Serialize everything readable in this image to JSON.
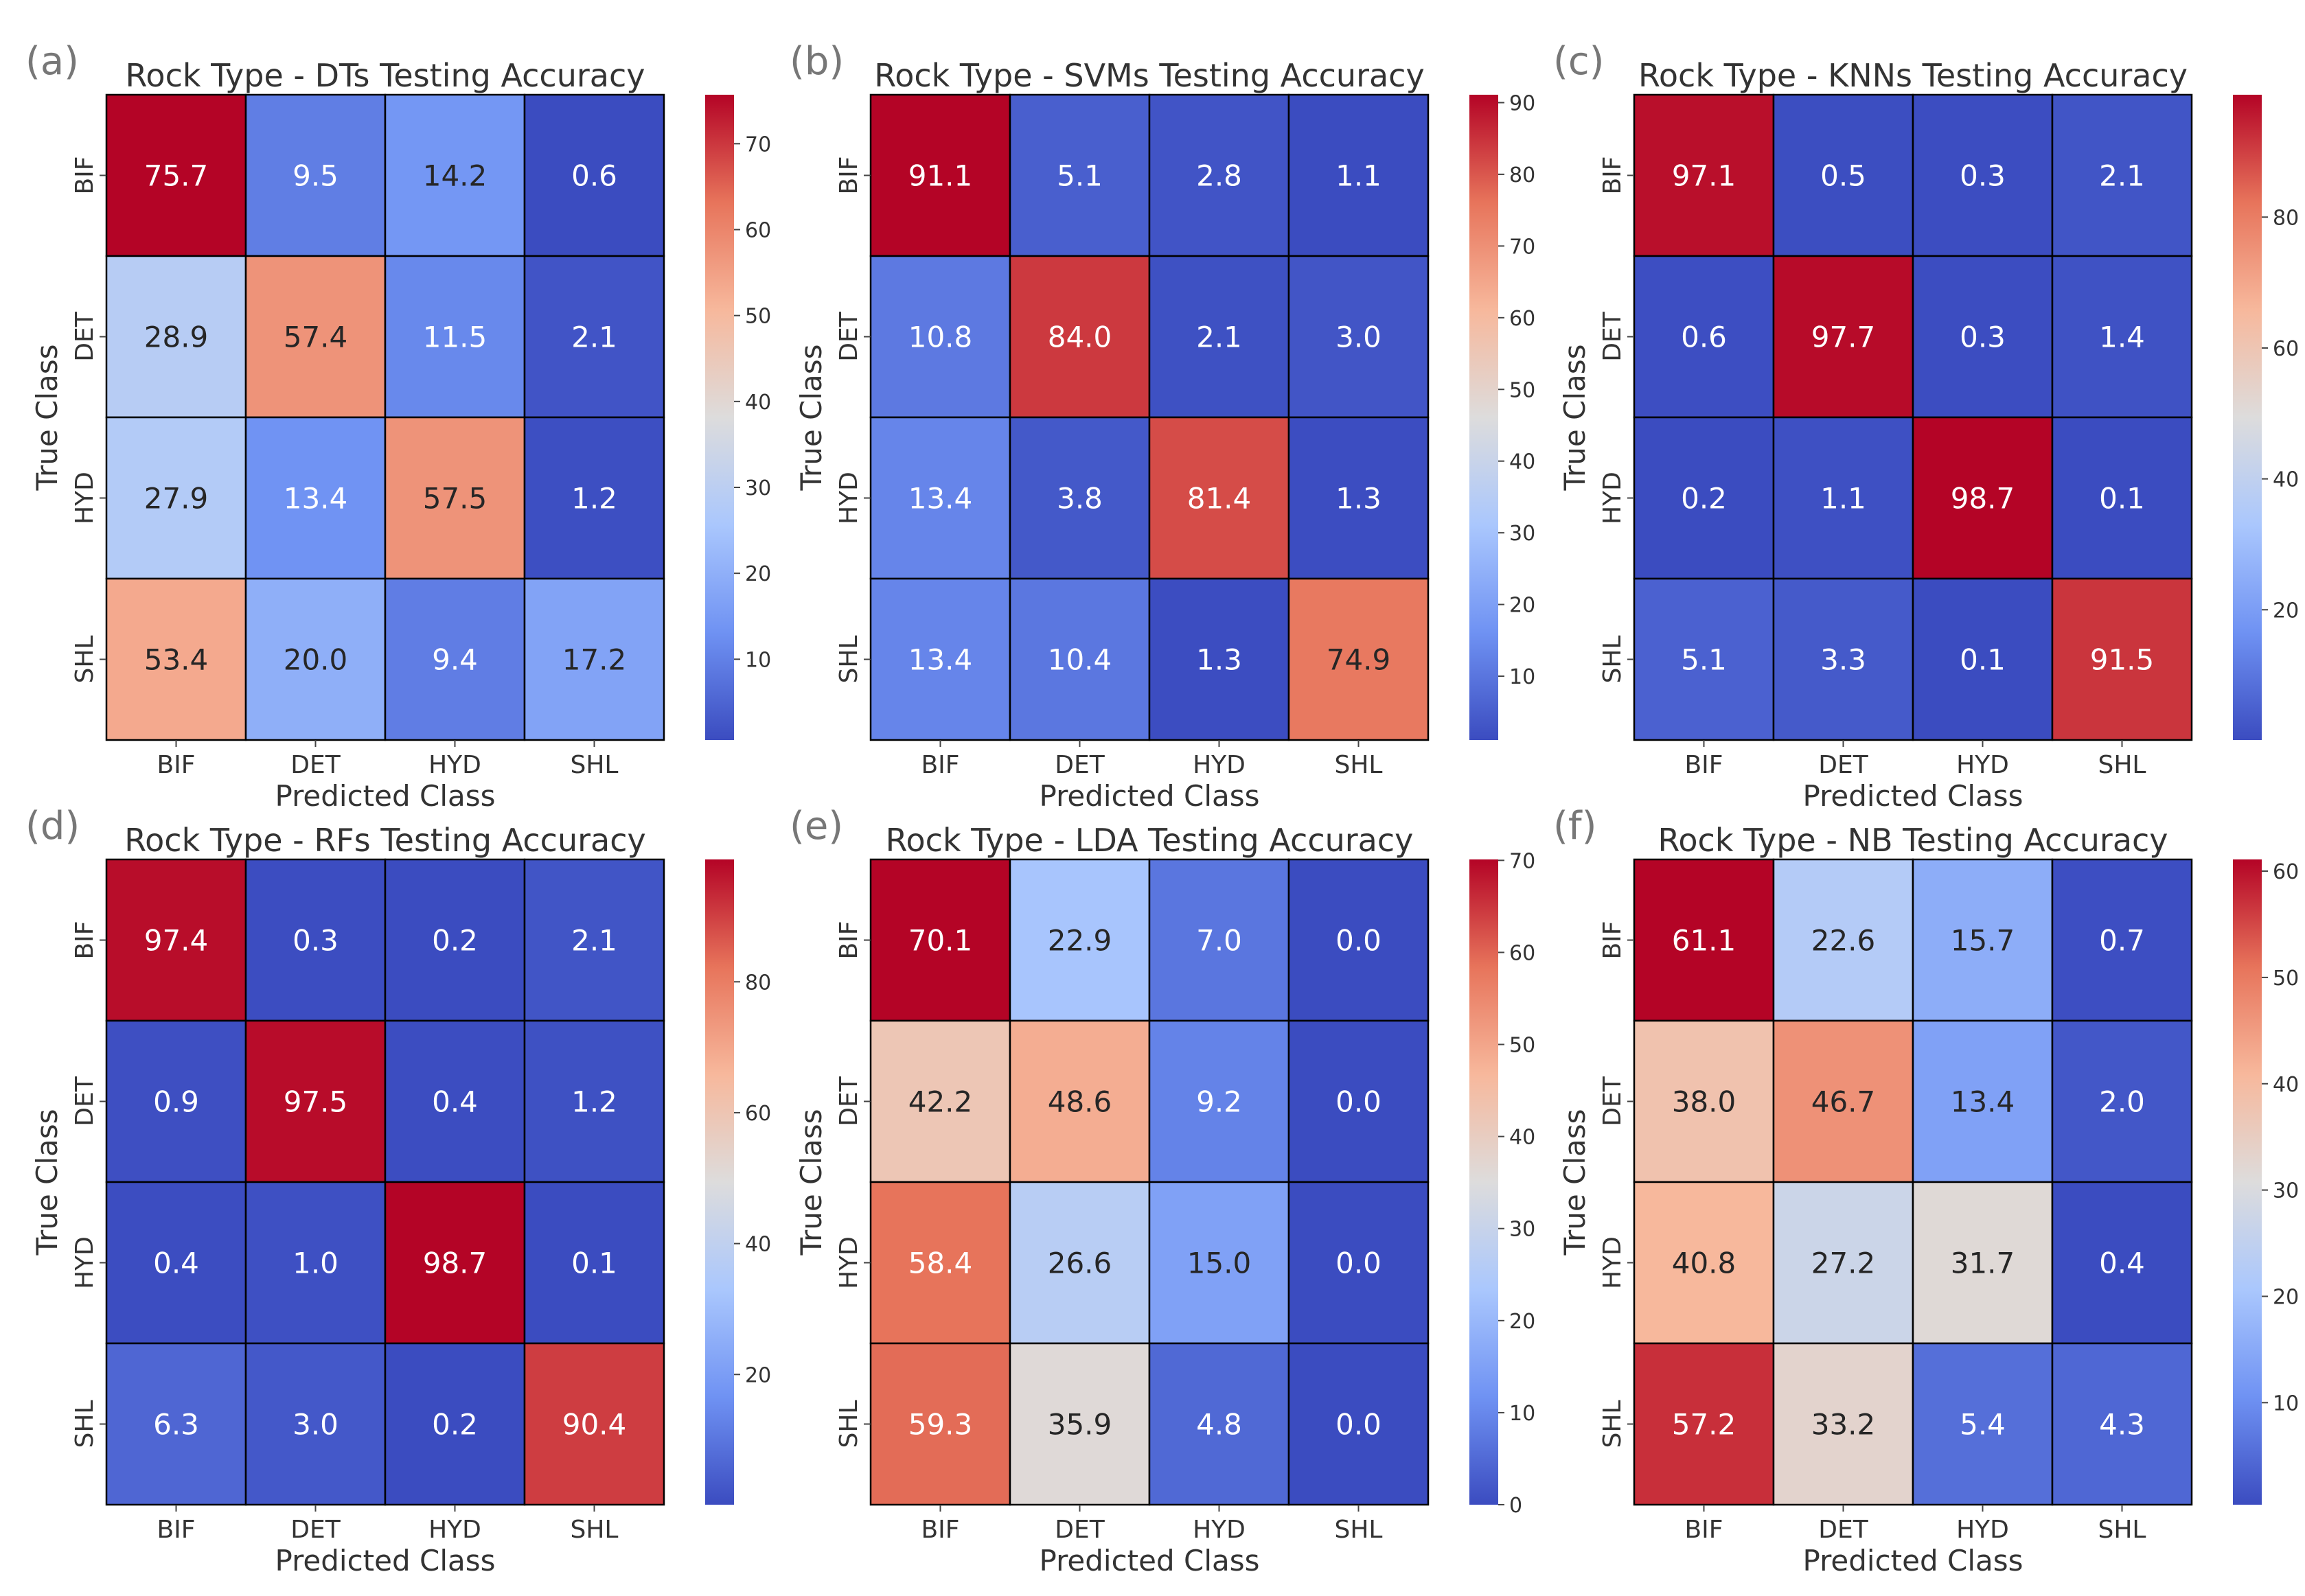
{
  "figure": {
    "background": "#ffffff"
  },
  "colormap": {
    "name": "coolwarm",
    "stops": [
      "#3b4cc0",
      "#6f92f3",
      "#aac7fd",
      "#dddcdc",
      "#f7b89c",
      "#e7745b",
      "#b40426"
    ]
  },
  "chart_data": [
    {
      "panel": "(a)",
      "type": "heatmap",
      "title": "Rock Type - DTs Testing Accuracy",
      "xlabel": "Predicted Class",
      "ylabel": "True Class",
      "x_categories": [
        "BIF",
        "DET",
        "HYD",
        "SHL"
      ],
      "y_categories": [
        "BIF",
        "DET",
        "HYD",
        "SHL"
      ],
      "values": [
        [
          75.7,
          9.5,
          14.2,
          0.6
        ],
        [
          28.9,
          57.4,
          11.5,
          2.1
        ],
        [
          27.9,
          13.4,
          57.5,
          1.2
        ],
        [
          53.4,
          20.0,
          9.4,
          17.2
        ]
      ],
      "color_range": [
        0.6,
        75.7
      ],
      "colorbar_ticks": [
        10,
        20,
        30,
        40,
        50,
        60,
        70
      ]
    },
    {
      "panel": "(b)",
      "type": "heatmap",
      "title": "Rock Type - SVMs Testing Accuracy",
      "xlabel": "Predicted Class",
      "ylabel": "True Class",
      "x_categories": [
        "BIF",
        "DET",
        "HYD",
        "SHL"
      ],
      "y_categories": [
        "BIF",
        "DET",
        "HYD",
        "SHL"
      ],
      "values": [
        [
          91.1,
          5.1,
          2.8,
          1.1
        ],
        [
          10.8,
          84.0,
          2.1,
          3.0
        ],
        [
          13.4,
          3.8,
          81.4,
          1.3
        ],
        [
          13.4,
          10.4,
          1.3,
          74.9
        ]
      ],
      "color_range": [
        1.1,
        91.1
      ],
      "colorbar_ticks": [
        10,
        20,
        30,
        40,
        50,
        60,
        70,
        80,
        90
      ]
    },
    {
      "panel": "(c)",
      "type": "heatmap",
      "title": "Rock Type - KNNs Testing Accuracy",
      "xlabel": "Predicted Class",
      "ylabel": "True Class",
      "x_categories": [
        "BIF",
        "DET",
        "HYD",
        "SHL"
      ],
      "y_categories": [
        "BIF",
        "DET",
        "HYD",
        "SHL"
      ],
      "values": [
        [
          97.1,
          0.5,
          0.3,
          2.1
        ],
        [
          0.6,
          97.7,
          0.3,
          1.4
        ],
        [
          0.2,
          1.1,
          98.7,
          0.1
        ],
        [
          5.1,
          3.3,
          0.1,
          91.5
        ]
      ],
      "color_range": [
        0.1,
        98.7
      ],
      "colorbar_ticks": [
        20,
        40,
        60,
        80
      ]
    },
    {
      "panel": "(d)",
      "type": "heatmap",
      "title": "Rock Type - RFs Testing Accuracy",
      "xlabel": "Predicted Class",
      "ylabel": "True Class",
      "x_categories": [
        "BIF",
        "DET",
        "HYD",
        "SHL"
      ],
      "y_categories": [
        "BIF",
        "DET",
        "HYD",
        "SHL"
      ],
      "values": [
        [
          97.4,
          0.3,
          0.2,
          2.1
        ],
        [
          0.9,
          97.5,
          0.4,
          1.2
        ],
        [
          0.4,
          1.0,
          98.7,
          0.1
        ],
        [
          6.3,
          3.0,
          0.2,
          90.4
        ]
      ],
      "color_range": [
        0.1,
        98.7
      ],
      "colorbar_ticks": [
        20,
        40,
        60,
        80
      ]
    },
    {
      "panel": "(e)",
      "type": "heatmap",
      "title": "Rock Type - LDA Testing Accuracy",
      "xlabel": "Predicted Class",
      "ylabel": "True Class",
      "x_categories": [
        "BIF",
        "DET",
        "HYD",
        "SHL"
      ],
      "y_categories": [
        "BIF",
        "DET",
        "HYD",
        "SHL"
      ],
      "values": [
        [
          70.1,
          22.9,
          7.0,
          0.0
        ],
        [
          42.2,
          48.6,
          9.2,
          0.0
        ],
        [
          58.4,
          26.6,
          15.0,
          0.0
        ],
        [
          59.3,
          35.9,
          4.8,
          0.0
        ]
      ],
      "color_range": [
        0.0,
        70.1
      ],
      "colorbar_ticks": [
        0,
        10,
        20,
        30,
        40,
        50,
        60,
        70
      ]
    },
    {
      "panel": "(f)",
      "type": "heatmap",
      "title": "Rock Type - NB Testing Accuracy",
      "xlabel": "Predicted Class",
      "ylabel": "True Class",
      "x_categories": [
        "BIF",
        "DET",
        "HYD",
        "SHL"
      ],
      "y_categories": [
        "BIF",
        "DET",
        "HYD",
        "SHL"
      ],
      "values": [
        [
          61.1,
          22.6,
          15.7,
          0.7
        ],
        [
          38.0,
          46.7,
          13.4,
          2.0
        ],
        [
          40.8,
          27.2,
          31.7,
          0.4
        ],
        [
          57.2,
          33.2,
          5.4,
          4.3
        ]
      ],
      "color_range": [
        0.4,
        61.1
      ],
      "colorbar_ticks": [
        10,
        20,
        30,
        40,
        50,
        60
      ]
    }
  ]
}
